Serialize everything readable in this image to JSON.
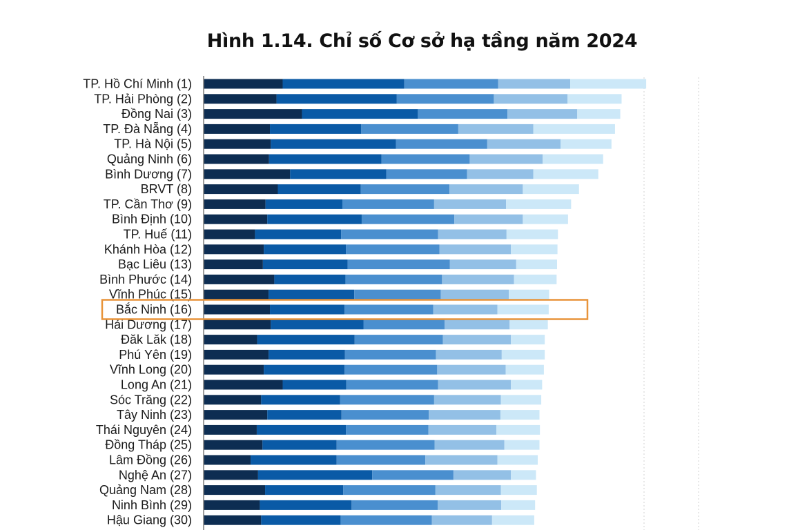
{
  "chart_data": {
    "type": "bar",
    "orientation": "horizontal",
    "stacked": true,
    "title": "Hình 1.14. Chỉ số Cơ sở hạ tầng năm 2024",
    "xlim": [
      0,
      11.3
    ],
    "grid": true,
    "highlighted_category": "Bắc Ninh (16)",
    "colors": [
      "#0d2d52",
      "#0a5aa6",
      "#4a8fcf",
      "#93c0e6",
      "#cce8f8"
    ],
    "categories": [
      "TP. Hồ Chí Minh (1)",
      "TP. Hải Phòng (2)",
      "Đồng Nai (3)",
      "TP. Đà Nẵng (4)",
      "TP. Hà Nội (5)",
      "Quảng Ninh (6)",
      "Bình Dương (7)",
      "BRVT (8)",
      "TP. Cần Thơ (9)",
      "Bình Định (10)",
      "TP. Huế (11)",
      "Khánh Hòa (12)",
      "Bạc Liêu (13)",
      "Bình Phước (14)",
      "Vĩnh Phúc (15)",
      "Bắc Ninh (16)",
      "Hải Dương (17)",
      "Đăk Lăk (18)",
      "Phú Yên (19)",
      "Vĩnh Long (20)",
      "Long An (21)",
      "Sóc Trăng (22)",
      "Tây Ninh (23)",
      "Thái Nguyên (24)",
      "Đồng Tháp (25)",
      "Lâm Đồng (26)",
      "Nghệ An (27)",
      "Quảng Nam (28)",
      "Ninh Bình (29)",
      "Hậu Giang (30)"
    ],
    "series": [
      {
        "values": [
          1.8,
          1.66,
          2.24,
          1.51,
          1.53,
          1.49,
          1.97,
          1.69,
          1.41,
          1.45,
          1.17,
          1.37,
          1.35,
          1.61,
          1.48,
          1.51,
          1.53,
          1.22,
          1.48,
          1.37,
          1.8,
          1.31,
          1.45,
          1.21,
          1.34,
          1.07,
          1.24,
          1.4,
          1.28,
          1.31
        ]
      },
      {
        "values": [
          2.77,
          2.74,
          2.64,
          2.08,
          2.85,
          2.56,
          2.19,
          1.89,
          1.75,
          2.15,
          1.96,
          1.87,
          1.93,
          1.62,
          1.95,
          1.7,
          2.11,
          2.22,
          1.74,
          1.84,
          1.45,
          1.8,
          1.69,
          2.03,
          1.69,
          1.96,
          2.6,
          1.78,
          2.09,
          1.81
        ]
      },
      {
        "values": [
          2.14,
          2.21,
          2.04,
          2.21,
          2.08,
          2.01,
          1.84,
          2.02,
          2.09,
          2.11,
          2.21,
          2.13,
          2.33,
          2.2,
          1.97,
          2.02,
          1.85,
          2.01,
          2.07,
          2.11,
          2.09,
          2.14,
          1.99,
          1.88,
          2.23,
          2.02,
          1.85,
          2.1,
          1.96,
          2.08
        ]
      },
      {
        "values": [
          1.64,
          1.68,
          1.59,
          1.71,
          1.67,
          1.66,
          1.51,
          1.67,
          1.64,
          1.56,
          1.56,
          1.63,
          1.51,
          1.64,
          1.55,
          1.46,
          1.48,
          1.55,
          1.5,
          1.56,
          1.66,
          1.52,
          1.63,
          1.55,
          1.59,
          1.64,
          1.31,
          1.49,
          1.45,
          1.37
        ]
      },
      {
        "values": [
          1.73,
          1.23,
          0.98,
          1.86,
          1.16,
          1.38,
          1.48,
          1.28,
          1.48,
          1.03,
          1.17,
          1.06,
          0.93,
          0.97,
          0.92,
          1.17,
          0.87,
          0.77,
          0.98,
          0.87,
          0.71,
          0.92,
          0.89,
          0.99,
          0.8,
          0.92,
          0.57,
          0.82,
          0.77,
          0.96
        ]
      }
    ]
  }
}
